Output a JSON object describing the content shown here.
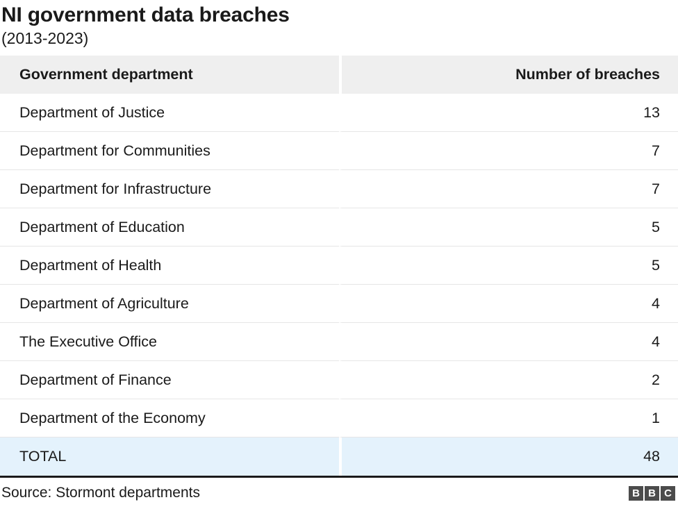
{
  "title": "NI government data breaches",
  "subtitle": "(2013-2023)",
  "table": {
    "columns": {
      "department": "Government department",
      "breaches": "Number of breaches"
    },
    "rows": [
      {
        "department": "Department of Justice",
        "breaches": "13"
      },
      {
        "department": "Department for Communities",
        "breaches": "7"
      },
      {
        "department": "Department for Infrastructure",
        "breaches": "7"
      },
      {
        "department": "Department of Education",
        "breaches": "5"
      },
      {
        "department": "Department of Health",
        "breaches": "5"
      },
      {
        "department": "Department of Agriculture",
        "breaches": "4"
      },
      {
        "department": "The Executive Office",
        "breaches": "4"
      },
      {
        "department": "Department of Finance",
        "breaches": "2"
      },
      {
        "department": "Department of the Economy",
        "breaches": "1"
      }
    ],
    "total_row": {
      "label": "TOTAL",
      "value": "48"
    }
  },
  "footer": {
    "source": "Source: Stormont departments",
    "logo_letters": [
      "B",
      "B",
      "C"
    ]
  },
  "colors": {
    "header_bg": "#efefef",
    "total_row_bg": "#e4f2fc",
    "row_border": "#e6e6e6",
    "footer_rule": "#1a1a1a",
    "logo_block_bg": "#4c4c4c",
    "text": "#1a1a1a"
  },
  "chart_data": {
    "type": "table",
    "title": "NI government data breaches",
    "subtitle": "(2013-2023)",
    "columns": [
      "Government department",
      "Number of breaches"
    ],
    "categories": [
      "Department of Justice",
      "Department for Communities",
      "Department for Infrastructure",
      "Department of Education",
      "Department of Health",
      "Department of Agriculture",
      "The Executive Office",
      "Department of Finance",
      "Department of the Economy"
    ],
    "values": [
      13,
      7,
      7,
      5,
      5,
      4,
      4,
      2,
      1
    ],
    "total": 48,
    "source": "Source: Stormont departments"
  }
}
